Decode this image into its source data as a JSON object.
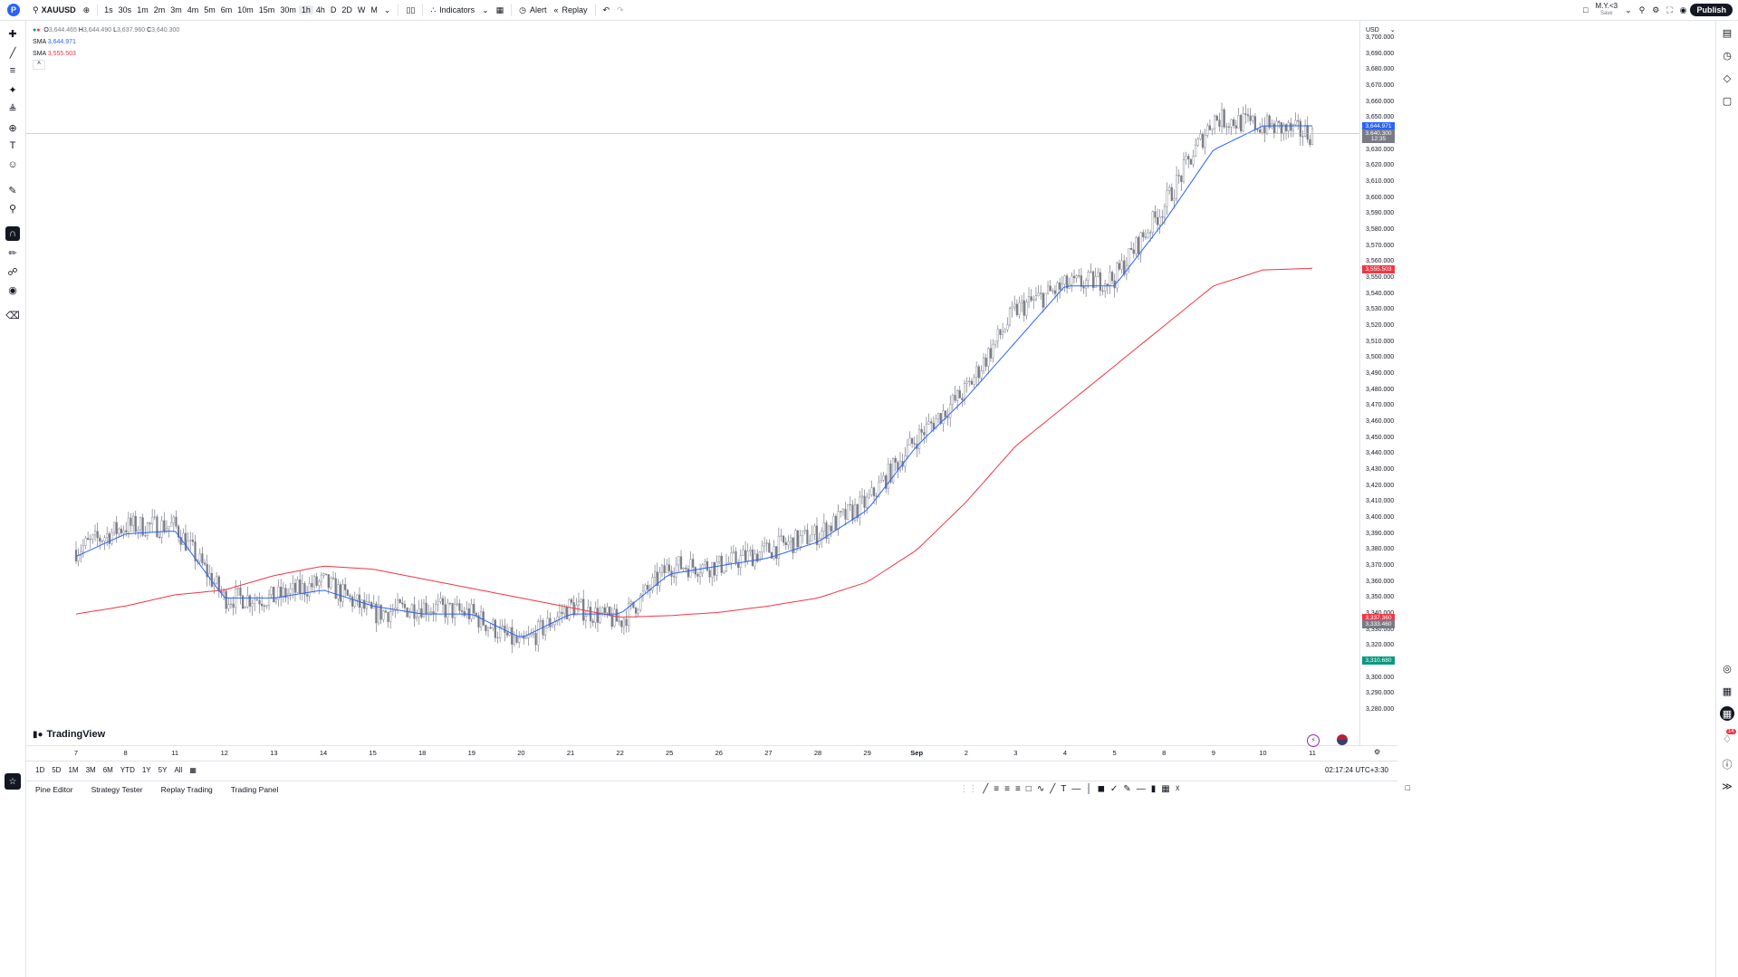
{
  "toolbar": {
    "logo": "P",
    "symbol": "XAUUSD",
    "timeframes": [
      "1s",
      "30s",
      "1m",
      "2m",
      "3m",
      "4m",
      "5m",
      "6m",
      "10m",
      "15m",
      "30m",
      "1h",
      "4h",
      "D",
      "2D",
      "W",
      "M"
    ],
    "active_timeframe": "1h",
    "indicators_label": "Indicators",
    "alert_label": "Alert",
    "replay_label": "Replay",
    "layout_name": "M.Y.<3",
    "layout_sub": "Save",
    "publish_label": "Publish"
  },
  "legend": {
    "ohlc": {
      "o": "3,644.465",
      "h": "3,644.490",
      "l": "3,637.960",
      "c": "3,640.300"
    },
    "sma1_label": "SMA",
    "sma1_value": "3,644.971",
    "sma2_label": "SMA",
    "sma2_value": "3,555.503"
  },
  "colors": {
    "sma_fast": "#2962ff",
    "sma_slow": "#f23645",
    "candle": "#787b86",
    "accent": "#2962ff",
    "green_tag": "#089981"
  },
  "price_axis": {
    "currency": "USD",
    "labels": [
      "3,700.000",
      "3,690.000",
      "3,680.000",
      "3,670.000",
      "3,660.000",
      "3,650.000",
      "3,640.000",
      "3,630.000",
      "3,620.000",
      "3,610.000",
      "3,600.000",
      "3,590.000",
      "3,580.000",
      "3,570.000",
      "3,560.000",
      "3,550.000",
      "3,540.000",
      "3,530.000",
      "3,520.000",
      "3,510.000",
      "3,500.000",
      "3,490.000",
      "3,480.000",
      "3,470.000",
      "3,460.000",
      "3,450.000",
      "3,440.000",
      "3,430.000",
      "3,420.000",
      "3,410.000",
      "3,400.000",
      "3,390.000",
      "3,380.000",
      "3,370.000",
      "3,360.000",
      "3,350.000",
      "3,340.000",
      "3,330.000",
      "3,320.000",
      "3,310.000",
      "3,300.000",
      "3,290.000",
      "3,280.000"
    ],
    "tags": [
      {
        "value": "3,644.971",
        "price": 3644.971,
        "color": "#2962ff"
      },
      {
        "value": "3,640.300",
        "price": 3640.3,
        "color": "#787b86"
      },
      {
        "value": "12:35",
        "price": 3636.8,
        "color": "#787b86"
      },
      {
        "value": "3,555.503",
        "price": 3555.503,
        "color": "#f23645"
      },
      {
        "value": "3,337.360",
        "price": 3337.36,
        "color": "#f23645"
      },
      {
        "value": "3,333.460",
        "price": 3333.46,
        "color": "#787b86"
      },
      {
        "value": "3,310.680",
        "price": 3310.68,
        "color": "#089981"
      }
    ]
  },
  "time_axis": {
    "labels": [
      "7",
      "8",
      "11",
      "12",
      "13",
      "14",
      "15",
      "18",
      "19",
      "20",
      "21",
      "22",
      "25",
      "26",
      "27",
      "28",
      "29",
      "Sep",
      "2",
      "3",
      "4",
      "5",
      "8",
      "9",
      "10",
      "11"
    ]
  },
  "range_bar": {
    "ranges": [
      "1D",
      "5D",
      "1M",
      "3M",
      "6M",
      "YTD",
      "1Y",
      "5Y",
      "All"
    ],
    "clock": "02:17:24 UTC+3:30"
  },
  "bottom_tabs": [
    "Pine Editor",
    "Strategy Tester",
    "Replay Trading",
    "Trading Panel"
  ],
  "brand": "TradingView",
  "notification_count": "14",
  "chart_data": {
    "type": "candlestick",
    "symbol": "XAUUSD",
    "ylim": [
      3275,
      3705
    ],
    "key_points": [
      {
        "x": "7",
        "price": 3380
      },
      {
        "x": "8",
        "price": 3395
      },
      {
        "x": "11",
        "price": 3395
      },
      {
        "x": "12",
        "price": 3350
      },
      {
        "x": "13",
        "price": 3350
      },
      {
        "x": "14",
        "price": 3360
      },
      {
        "x": "15",
        "price": 3340
      },
      {
        "x": "18",
        "price": 3345
      },
      {
        "x": "19",
        "price": 3340
      },
      {
        "x": "20",
        "price": 3320
      },
      {
        "x": "21",
        "price": 3345
      },
      {
        "x": "22",
        "price": 3335
      },
      {
        "x": "25",
        "price": 3370
      },
      {
        "x": "26",
        "price": 3370
      },
      {
        "x": "27",
        "price": 3380
      },
      {
        "x": "28",
        "price": 3390
      },
      {
        "x": "29",
        "price": 3410
      },
      {
        "x": "Sep",
        "price": 3450
      },
      {
        "x": "2",
        "price": 3480
      },
      {
        "x": "3",
        "price": 3530
      },
      {
        "x": "4",
        "price": 3545
      },
      {
        "x": "5",
        "price": 3550
      },
      {
        "x": "8",
        "price": 3595
      },
      {
        "x": "9",
        "price": 3650
      },
      {
        "x": "10",
        "price": 3645
      },
      {
        "x": "11",
        "price": 3640
      }
    ],
    "sma_fast_points": [
      3376,
      3390,
      3392,
      3350,
      3350,
      3355,
      3345,
      3340,
      3340,
      3325,
      3340,
      3340,
      3365,
      3370,
      3375,
      3385,
      3405,
      3445,
      3475,
      3510,
      3545,
      3545,
      3585,
      3630,
      3645,
      3645
    ],
    "sma_slow_points": [
      3340,
      3345,
      3352,
      3355,
      3364,
      3370,
      3368,
      3362,
      3356,
      3350,
      3344,
      3338,
      3339,
      3341,
      3345,
      3350,
      3360,
      3380,
      3410,
      3445,
      3470,
      3495,
      3520,
      3545,
      3555,
      3556
    ]
  }
}
